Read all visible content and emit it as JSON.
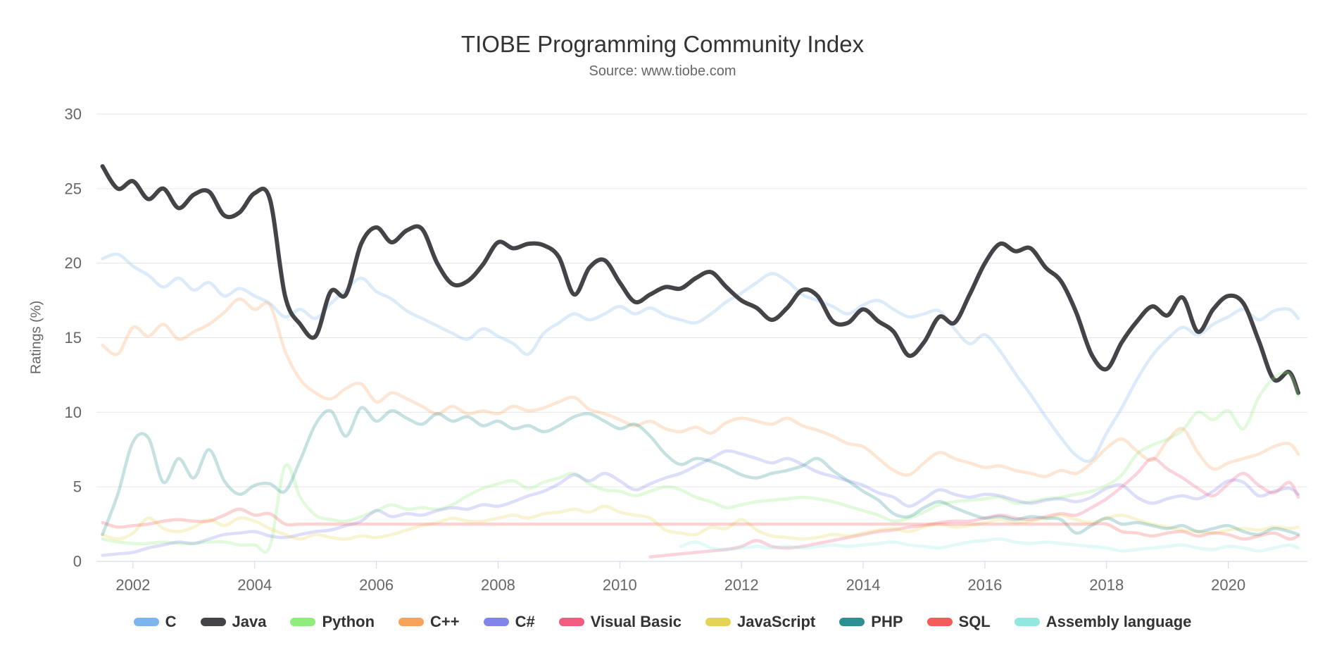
{
  "title": "TIOBE Programming Community Index",
  "subtitle": "Source: www.tiobe.com",
  "chart_data": {
    "type": "line",
    "title": "TIOBE Programming Community Index",
    "subtitle": "Source: www.tiobe.com",
    "xlabel": "",
    "ylabel": "Ratings (%)",
    "xlim": [
      2001.4,
      2021.3
    ],
    "ylim": [
      0,
      30
    ],
    "grid": true,
    "legend_position": "bottom",
    "highlighted_series": "Java",
    "x_ticks": [
      2002,
      2004,
      2006,
      2008,
      2010,
      2012,
      2014,
      2016,
      2018,
      2020
    ],
    "x_tick_labels": [
      "2002",
      "2004",
      "2006",
      "2008",
      "2010",
      "2012",
      "2014",
      "2016",
      "2018",
      "2020"
    ],
    "y_ticks": [
      0,
      5,
      10,
      15,
      20,
      25,
      30
    ],
    "y_tick_labels": [
      "0",
      "5",
      "10",
      "15",
      "20",
      "25",
      "30"
    ],
    "colors": {
      "grid": "#e6e6e6",
      "axis": "#ccd6eb",
      "label": "#666666",
      "title": "#333333"
    },
    "x": [
      2001.5,
      2001.75,
      2002,
      2002.25,
      2002.5,
      2002.75,
      2003,
      2003.25,
      2003.5,
      2003.75,
      2004,
      2004.25,
      2004.5,
      2004.75,
      2005,
      2005.25,
      2005.5,
      2005.75,
      2006,
      2006.25,
      2006.5,
      2006.75,
      2007,
      2007.25,
      2007.5,
      2007.75,
      2008,
      2008.25,
      2008.5,
      2008.75,
      2009,
      2009.25,
      2009.5,
      2009.75,
      2010,
      2010.25,
      2010.5,
      2010.75,
      2011,
      2011.25,
      2011.5,
      2011.75,
      2012,
      2012.25,
      2012.5,
      2012.75,
      2013,
      2013.25,
      2013.5,
      2013.75,
      2014,
      2014.25,
      2014.5,
      2014.75,
      2015,
      2015.25,
      2015.5,
      2015.75,
      2016,
      2016.25,
      2016.5,
      2016.75,
      2017,
      2017.25,
      2017.5,
      2017.75,
      2018,
      2018.25,
      2018.5,
      2018.75,
      2019,
      2019.25,
      2019.5,
      2019.75,
      2020,
      2020.25,
      2020.5,
      2020.75,
      2021,
      2021.15
    ],
    "series": [
      {
        "name": "C",
        "color": "#7cb5ec",
        "values": [
          20.3,
          20.6,
          19.8,
          19.2,
          18.4,
          19.0,
          18.2,
          18.7,
          17.8,
          18.3,
          17.8,
          17.3,
          16.4,
          16.9,
          16.3,
          17.3,
          18.2,
          19.0,
          18.1,
          17.6,
          16.8,
          16.3,
          15.8,
          15.3,
          14.9,
          15.6,
          15.1,
          14.6,
          13.9,
          15.3,
          16.0,
          16.6,
          16.2,
          16.6,
          17.1,
          16.6,
          17.0,
          16.5,
          16.2,
          16.0,
          16.6,
          17.4,
          18.0,
          18.7,
          19.3,
          18.8,
          17.9,
          17.5,
          17.1,
          16.6,
          17.2,
          17.5,
          16.9,
          16.4,
          16.6,
          16.8,
          15.6,
          14.6,
          15.2,
          14.1,
          12.6,
          11.2,
          9.7,
          8.3,
          7.1,
          6.8,
          8.6,
          10.3,
          12.2,
          13.8,
          14.9,
          15.7,
          15.2,
          15.9,
          16.4,
          16.9,
          16.2,
          16.8,
          16.9,
          16.3
        ]
      },
      {
        "name": "Java",
        "color": "#434348",
        "values": [
          26.5,
          25.0,
          25.5,
          24.3,
          25.0,
          23.7,
          24.6,
          24.8,
          23.2,
          23.4,
          24.7,
          24.3,
          17.8,
          15.9,
          15.1,
          18.1,
          17.9,
          21.3,
          22.4,
          21.4,
          22.2,
          22.3,
          20.0,
          18.6,
          18.8,
          19.9,
          21.4,
          21.0,
          21.3,
          21.2,
          20.4,
          17.9,
          19.7,
          20.2,
          18.7,
          17.4,
          17.9,
          18.4,
          18.3,
          19.0,
          19.4,
          18.4,
          17.5,
          17.0,
          16.2,
          17.0,
          18.2,
          17.8,
          16.1,
          16.0,
          16.9,
          16.1,
          15.4,
          13.8,
          14.7,
          16.4,
          16.0,
          17.9,
          20.0,
          21.3,
          20.8,
          21.0,
          19.7,
          18.8,
          16.7,
          13.9,
          12.9,
          14.7,
          16.1,
          17.1,
          16.5,
          17.7,
          15.4,
          16.9,
          17.8,
          17.3,
          14.8,
          12.2,
          12.7,
          11.3
        ]
      },
      {
        "name": "Python",
        "color": "#90ed7d",
        "values": [
          1.5,
          1.3,
          1.2,
          1.2,
          1.3,
          1.2,
          1.2,
          1.3,
          1.3,
          1.1,
          1.1,
          1.0,
          6.4,
          4.3,
          3.1,
          2.8,
          2.7,
          3.0,
          3.4,
          3.8,
          3.5,
          3.6,
          3.5,
          3.8,
          4.4,
          4.9,
          5.2,
          5.4,
          4.9,
          5.3,
          5.6,
          5.9,
          5.2,
          4.8,
          4.7,
          4.4,
          4.7,
          5.0,
          4.8,
          4.3,
          4.0,
          3.6,
          3.8,
          4.0,
          4.1,
          4.2,
          4.3,
          4.2,
          4.0,
          3.7,
          3.4,
          3.1,
          2.7,
          2.9,
          3.3,
          3.8,
          4.0,
          4.1,
          4.2,
          4.3,
          3.9,
          4.0,
          4.2,
          4.3,
          4.5,
          4.7,
          5.1,
          5.8,
          7.2,
          7.8,
          8.2,
          8.8,
          10.0,
          9.5,
          10.1,
          8.9,
          11.0,
          12.3,
          12.6,
          11.1
        ]
      },
      {
        "name": "C++",
        "color": "#f7a35c",
        "values": [
          14.5,
          13.9,
          15.7,
          15.1,
          15.9,
          14.9,
          15.4,
          15.9,
          16.7,
          17.6,
          16.9,
          17.2,
          14.1,
          12.2,
          11.3,
          10.9,
          11.6,
          11.9,
          10.7,
          11.3,
          10.9,
          10.4,
          9.9,
          10.4,
          9.9,
          10.1,
          9.9,
          10.4,
          10.1,
          10.3,
          10.7,
          11.0,
          10.2,
          9.9,
          9.5,
          9.1,
          9.4,
          8.9,
          8.7,
          9.0,
          8.6,
          9.3,
          9.6,
          9.4,
          9.2,
          9.6,
          9.1,
          8.8,
          8.4,
          7.9,
          7.7,
          6.9,
          6.1,
          5.8,
          6.6,
          7.3,
          6.9,
          6.6,
          6.3,
          6.4,
          6.1,
          5.9,
          5.7,
          6.1,
          5.9,
          6.6,
          7.6,
          8.2,
          7.4,
          6.8,
          8.1,
          8.9,
          7.3,
          6.2,
          6.6,
          6.9,
          7.2,
          7.7,
          7.9,
          7.2
        ]
      },
      {
        "name": "C#",
        "color": "#8085e9",
        "values": [
          0.4,
          0.5,
          0.6,
          0.9,
          1.1,
          1.3,
          1.2,
          1.5,
          1.8,
          1.9,
          2.0,
          1.7,
          1.6,
          1.8,
          2.0,
          2.1,
          2.4,
          2.7,
          3.4,
          3.0,
          3.2,
          3.1,
          3.4,
          3.6,
          3.5,
          3.8,
          3.7,
          4.0,
          4.4,
          4.7,
          5.2,
          5.8,
          5.4,
          5.9,
          5.4,
          4.8,
          5.2,
          5.6,
          5.9,
          6.4,
          6.9,
          7.4,
          7.2,
          6.9,
          6.6,
          6.9,
          6.5,
          6.0,
          5.7,
          5.4,
          5.1,
          4.6,
          4.3,
          3.7,
          4.2,
          4.8,
          4.5,
          4.3,
          4.5,
          4.4,
          4.1,
          3.9,
          4.1,
          4.2,
          4.0,
          4.3,
          4.9,
          5.1,
          4.3,
          3.9,
          4.2,
          4.4,
          4.2,
          4.7,
          5.4,
          5.3,
          4.4,
          4.7,
          4.9,
          4.5
        ]
      },
      {
        "name": "Visual Basic",
        "color": "#f15c80",
        "values": [
          null,
          null,
          null,
          null,
          null,
          null,
          null,
          null,
          null,
          null,
          null,
          null,
          null,
          null,
          null,
          null,
          null,
          null,
          null,
          null,
          null,
          null,
          null,
          null,
          null,
          null,
          null,
          null,
          null,
          null,
          null,
          null,
          null,
          null,
          null,
          null,
          0.3,
          0.4,
          0.5,
          0.6,
          0.7,
          0.8,
          1.0,
          1.4,
          1.0,
          0.9,
          1.0,
          1.2,
          1.4,
          1.6,
          1.8,
          2.0,
          2.1,
          2.3,
          2.4,
          2.6,
          2.7,
          2.7,
          2.9,
          3.1,
          2.9,
          2.8,
          3.0,
          3.2,
          3.1,
          3.6,
          4.2,
          5.0,
          5.9,
          6.9,
          6.2,
          5.6,
          4.9,
          4.4,
          5.2,
          5.9,
          5.1,
          4.6,
          5.3,
          4.3
        ]
      },
      {
        "name": "JavaScript",
        "color": "#e4d354",
        "values": [
          1.8,
          1.5,
          1.9,
          2.9,
          2.2,
          2.0,
          2.3,
          2.8,
          2.4,
          2.9,
          2.7,
          2.2,
          1.8,
          1.5,
          1.8,
          1.6,
          1.5,
          1.7,
          1.6,
          1.8,
          2.1,
          2.4,
          2.6,
          2.9,
          2.7,
          2.7,
          2.9,
          3.1,
          2.9,
          3.2,
          3.3,
          3.5,
          3.3,
          3.7,
          3.3,
          3.1,
          2.9,
          2.1,
          1.9,
          1.8,
          2.3,
          2.2,
          2.8,
          2.1,
          1.7,
          1.6,
          1.5,
          1.6,
          1.8,
          1.7,
          1.9,
          2.1,
          2.2,
          2.0,
          2.3,
          2.5,
          2.3,
          2.4,
          2.6,
          2.8,
          2.6,
          2.7,
          2.9,
          3.1,
          2.8,
          2.6,
          2.9,
          3.1,
          2.8,
          2.5,
          2.3,
          2.1,
          2.0,
          1.9,
          2.1,
          2.2,
          2.1,
          2.3,
          2.2,
          2.3
        ]
      },
      {
        "name": "PHP",
        "color": "#2b908f",
        "values": [
          1.8,
          4.5,
          8.0,
          8.3,
          5.3,
          6.9,
          5.6,
          7.5,
          5.4,
          4.5,
          5.1,
          5.2,
          4.7,
          6.8,
          9.2,
          10.1,
          8.4,
          10.3,
          9.4,
          10.1,
          9.6,
          9.2,
          9.9,
          9.4,
          9.7,
          9.1,
          9.4,
          8.9,
          9.1,
          8.7,
          9.1,
          9.7,
          9.9,
          9.4,
          8.9,
          9.2,
          8.4,
          7.2,
          6.5,
          6.9,
          6.7,
          6.3,
          5.8,
          5.6,
          5.9,
          6.1,
          6.4,
          6.9,
          6.1,
          5.4,
          4.7,
          4.1,
          3.2,
          3.0,
          3.6,
          4.0,
          3.6,
          3.2,
          2.9,
          3.0,
          2.8,
          3.0,
          2.9,
          2.8,
          1.9,
          2.4,
          2.9,
          2.5,
          2.6,
          2.4,
          2.2,
          2.4,
          2.0,
          2.2,
          2.4,
          2.0,
          1.8,
          2.2,
          2.0,
          1.8
        ]
      },
      {
        "name": "SQL",
        "color": "#f45b5b",
        "values": [
          2.6,
          2.3,
          2.4,
          2.5,
          2.7,
          2.8,
          2.7,
          2.7,
          3.1,
          3.5,
          3.1,
          3.2,
          2.5,
          2.5,
          2.5,
          2.5,
          2.5,
          2.5,
          2.5,
          2.5,
          2.5,
          2.5,
          2.5,
          2.5,
          2.5,
          2.5,
          2.5,
          2.5,
          2.5,
          2.5,
          2.5,
          2.5,
          2.5,
          2.5,
          2.5,
          2.5,
          2.5,
          2.5,
          2.5,
          2.5,
          2.5,
          2.5,
          2.5,
          2.5,
          2.5,
          2.5,
          2.5,
          2.5,
          2.5,
          2.5,
          2.5,
          2.5,
          2.5,
          2.5,
          2.5,
          2.5,
          2.5,
          2.5,
          2.5,
          2.5,
          2.5,
          2.5,
          2.5,
          2.5,
          2.5,
          2.5,
          2.5,
          2.0,
          1.9,
          1.7,
          1.9,
          2.0,
          1.7,
          1.9,
          1.8,
          1.5,
          1.7,
          1.9,
          1.5,
          1.7
        ]
      },
      {
        "name": "Assembly language",
        "color": "#91e8e1",
        "values": [
          null,
          null,
          null,
          null,
          null,
          null,
          null,
          null,
          null,
          null,
          null,
          null,
          null,
          null,
          null,
          null,
          null,
          null,
          null,
          null,
          null,
          null,
          null,
          null,
          null,
          null,
          null,
          null,
          null,
          null,
          null,
          null,
          null,
          null,
          null,
          null,
          null,
          null,
          1.0,
          1.3,
          0.9,
          0.8,
          0.9,
          1.0,
          0.9,
          1.0,
          0.9,
          1.0,
          1.1,
          1.0,
          1.1,
          1.2,
          1.3,
          1.1,
          1.0,
          0.9,
          1.1,
          1.3,
          1.4,
          1.5,
          1.3,
          1.2,
          1.3,
          1.2,
          1.1,
          1.0,
          0.9,
          0.7,
          0.8,
          0.9,
          1.0,
          1.1,
          0.9,
          0.8,
          1.0,
          0.9,
          0.7,
          0.9,
          1.1,
          0.9
        ]
      }
    ]
  }
}
